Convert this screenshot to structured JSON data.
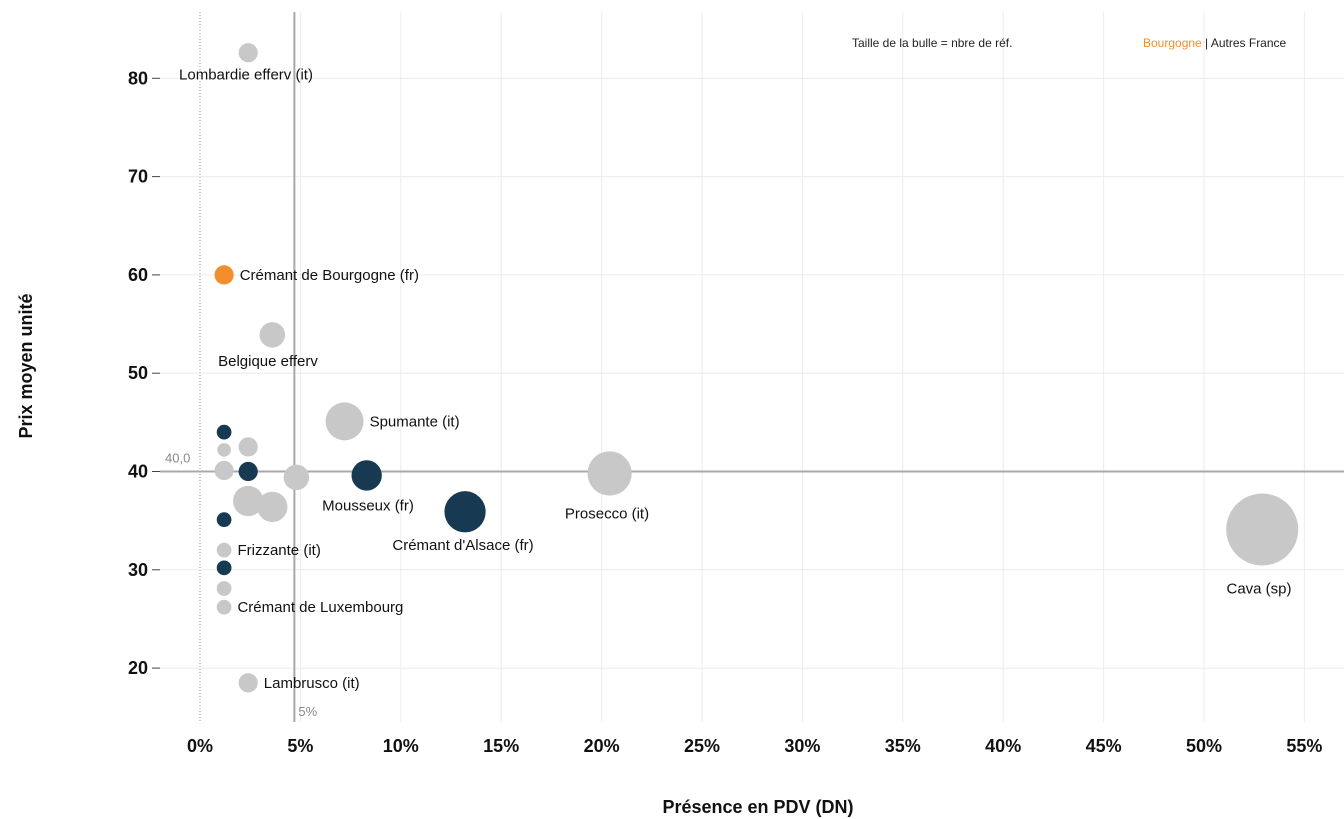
{
  "chart_data": {
    "type": "scatter",
    "xlabel": "Présence en PDV (DN)",
    "ylabel": "Prix moyen unité",
    "xlim": [
      -0.02,
      0.57
    ],
    "ylim": [
      15,
      87
    ],
    "x_ticks": [
      0,
      0.05,
      0.1,
      0.15,
      0.2,
      0.25,
      0.3,
      0.35,
      0.4,
      0.45,
      0.5,
      0.55
    ],
    "x_tick_labels": [
      "0%",
      "5%",
      "10%",
      "15%",
      "20%",
      "25%",
      "30%",
      "35%",
      "40%",
      "45%",
      "50%",
      "55%"
    ],
    "y_ticks": [
      20,
      30,
      40,
      50,
      60,
      70,
      80
    ],
    "y_tick_labels": [
      "20",
      "30",
      "40",
      "50",
      "60",
      "70",
      "80"
    ],
    "grid": true,
    "reference_lines": {
      "horizontal": {
        "y": 40,
        "label": "40,0"
      },
      "vertical": {
        "x": 0.047,
        "label": "5%"
      }
    },
    "legend": {
      "size_note": "Taille de la bulle = nbre de réf.",
      "groups": [
        {
          "name": "Bourgogne",
          "color": "#f28e2b"
        },
        {
          "sep": " | "
        },
        {
          "name": "Autres France",
          "color": "#1a3a52"
        }
      ],
      "placement": "top-right"
    },
    "colors": {
      "bourgogne": "#f28e2b",
      "france": "#173a52",
      "other": "#c8c8c8"
    },
    "points": [
      {
        "x": 0.024,
        "y": 82.6,
        "size": 1,
        "group": "other",
        "label": "Lombardie efferv (it)",
        "label_pos": "below"
      },
      {
        "x": 0.012,
        "y": 60,
        "size": 1,
        "group": "bourgogne",
        "label": "Crémant de Bourgogne (fr)",
        "label_pos": "right"
      },
      {
        "x": 0.036,
        "y": 53.9,
        "size": 2,
        "group": "other",
        "label": "Belgique efferv",
        "label_pos": "below"
      },
      {
        "x": 0.072,
        "y": 45.1,
        "size": 5,
        "group": "other",
        "label": "Spumante (it)",
        "label_pos": "right"
      },
      {
        "x": 0.012,
        "y": 44,
        "size": 0.5,
        "group": "france",
        "label": ""
      },
      {
        "x": 0.024,
        "y": 42.5,
        "size": 1,
        "group": "other",
        "label": ""
      },
      {
        "x": 0.012,
        "y": 42.2,
        "size": 0.4,
        "group": "other",
        "label": ""
      },
      {
        "x": 0.012,
        "y": 40.1,
        "size": 1,
        "group": "other",
        "label": ""
      },
      {
        "x": 0.024,
        "y": 40,
        "size": 1,
        "group": "france",
        "label": ""
      },
      {
        "x": 0.048,
        "y": 39.4,
        "size": 2,
        "group": "other",
        "label": ""
      },
      {
        "x": 0.083,
        "y": 39.6,
        "size": 3,
        "group": "france",
        "label": "Mousseux (fr)",
        "label_pos": "belowleft"
      },
      {
        "x": 0.204,
        "y": 39.8,
        "size": 7,
        "group": "other",
        "label": "Prosecco (it)",
        "label_pos": "belowleft"
      },
      {
        "x": 0.024,
        "y": 37,
        "size": 3,
        "group": "other",
        "label": ""
      },
      {
        "x": 0.036,
        "y": 36.4,
        "size": 3,
        "group": "other",
        "label": ""
      },
      {
        "x": 0.132,
        "y": 35.9,
        "size": 6,
        "group": "france",
        "label": "Crémant d'Alsace (fr)",
        "label_pos": "belowleft"
      },
      {
        "x": 0.012,
        "y": 35.1,
        "size": 0.5,
        "group": "france",
        "label": ""
      },
      {
        "x": 0.529,
        "y": 34.1,
        "size": 20,
        "group": "other",
        "label": "Cava (sp)",
        "label_pos": "below"
      },
      {
        "x": 0.012,
        "y": 32,
        "size": 0.5,
        "group": "other",
        "label": "Frizzante (it)",
        "label_pos": "right"
      },
      {
        "x": 0.012,
        "y": 30.2,
        "size": 0.5,
        "group": "france",
        "label": ""
      },
      {
        "x": 0.012,
        "y": 28.1,
        "size": 0.5,
        "group": "other",
        "label": ""
      },
      {
        "x": 0.012,
        "y": 26.2,
        "size": 0.5,
        "group": "other",
        "label": "Crémant de Luxembourg",
        "label_pos": "right"
      },
      {
        "x": 0.024,
        "y": 18.5,
        "size": 1,
        "group": "other",
        "label": "Lambrusco (it)",
        "label_pos": "right"
      }
    ]
  }
}
